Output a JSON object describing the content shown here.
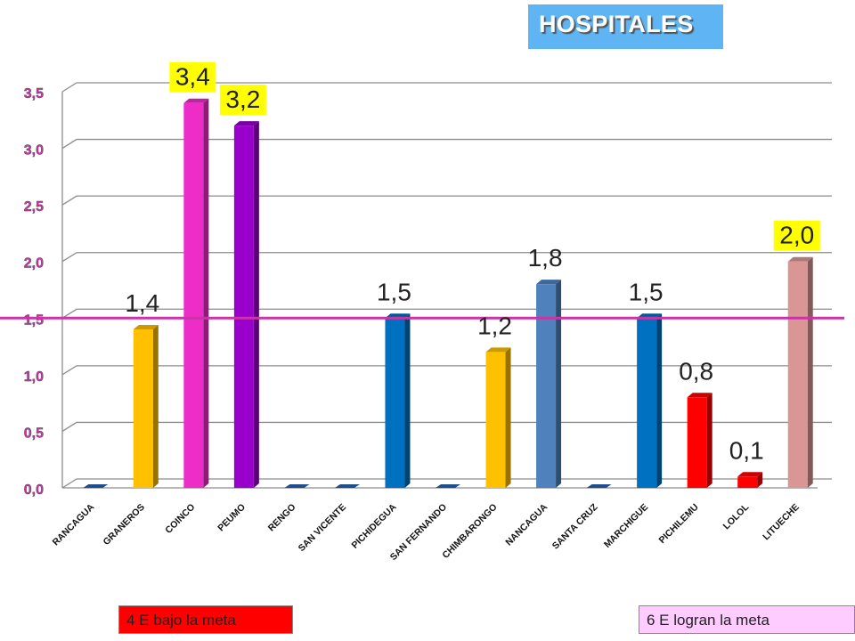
{
  "title": "HOSPITALES",
  "legend": {
    "below_label": "4 E bajo la meta",
    "meet_label": "6 E logran la meta"
  },
  "colors": {
    "title_bg": "#5fb4f4",
    "axis_label": "#cc33aa",
    "goal_line": "#cc33aa",
    "below_bg": "#ff0000",
    "meet_bg": "#ffccff",
    "highlight_label_bg": "#ffff00"
  },
  "chart_data": {
    "type": "bar",
    "style": "3d-column",
    "title": "HOSPITALES",
    "xlabel": "",
    "ylabel": "",
    "ylim": [
      0,
      3.5
    ],
    "yticks": [
      "0,0",
      "0,5",
      "1,0",
      "1,5",
      "2,0",
      "2,5",
      "3,0",
      "3,5"
    ],
    "grid": true,
    "goal_line": 1.5,
    "categories": [
      "RANCAGUA",
      "GRANEROS",
      "COINCO",
      "PEUMO",
      "RENGO",
      "SAN VICENTE",
      "PICHIDEGUA",
      "SAN FERNANDO",
      "CHIMBARONGO",
      "NANCAGUA",
      "SANTA CRUZ",
      "MARCHIGUE",
      "PICHILEMU",
      "LOLOL",
      "LITUECHE"
    ],
    "values": [
      0,
      1.4,
      3.4,
      3.2,
      0,
      0,
      1.5,
      0,
      1.2,
      1.8,
      0,
      1.5,
      0.8,
      0.1,
      2.0
    ],
    "labels": [
      "",
      "1,4",
      "3,4",
      "3,2",
      "",
      "",
      "1,5",
      "",
      "1,2",
      "1,8",
      "",
      "1,5",
      "0,8",
      "0,1",
      "2,0"
    ],
    "highlighted": [
      false,
      false,
      true,
      true,
      false,
      false,
      false,
      false,
      false,
      false,
      false,
      false,
      false,
      false,
      true
    ],
    "bar_colors": [
      "#1f5fa8",
      "#ffc000",
      "#ee2cc8",
      "#9900cc",
      "#1f5fa8",
      "#1f5fa8",
      "#0070c0",
      "#1f5fa8",
      "#ffc000",
      "#4f81bd",
      "#1f5fa8",
      "#0070c0",
      "#ff0000",
      "#ff0000",
      "#d99694"
    ]
  }
}
